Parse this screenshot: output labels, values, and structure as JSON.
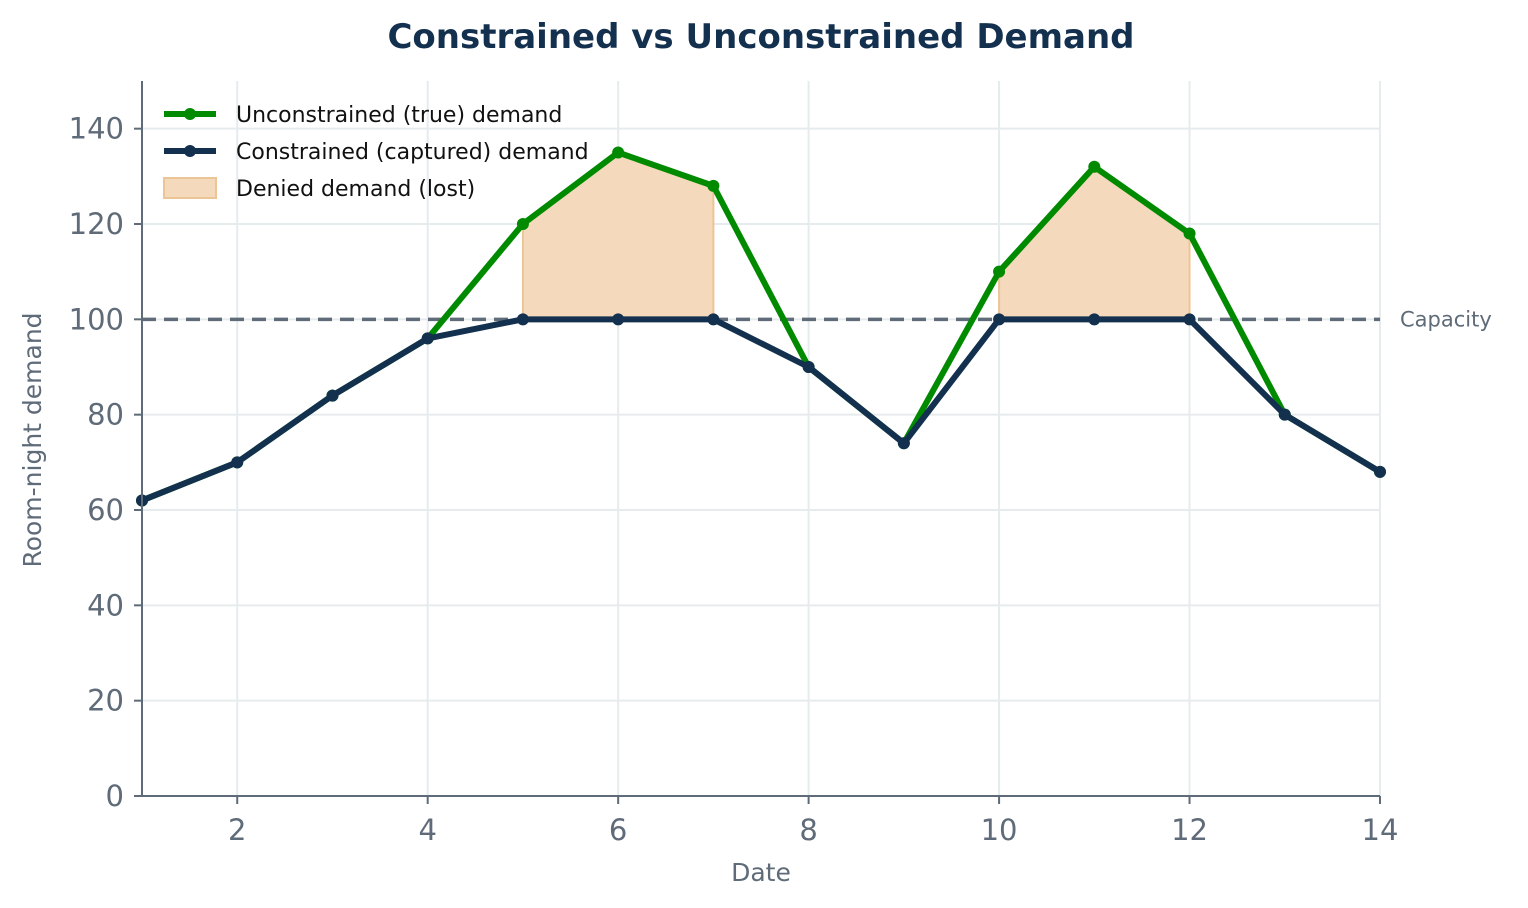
{
  "chart_data": {
    "type": "line",
    "title": "Constrained vs Unconstrained Demand",
    "xlabel": "Date",
    "ylabel": "Room-night demand",
    "xlim": [
      1,
      14
    ],
    "ylim": [
      0,
      150
    ],
    "xticks": [
      2,
      4,
      6,
      8,
      10,
      12,
      14
    ],
    "yticks": [
      0,
      20,
      40,
      60,
      80,
      100,
      120,
      140
    ],
    "grid": true,
    "legend_position": "top-left",
    "x": [
      1,
      2,
      3,
      4,
      5,
      6,
      7,
      8,
      9,
      10,
      11,
      12,
      13,
      14
    ],
    "series": [
      {
        "name": "Unconstrained (true) demand",
        "color": "#008a00",
        "values": [
          62,
          70,
          84,
          96,
          120,
          135,
          128,
          90,
          74,
          110,
          132,
          118,
          80,
          68
        ]
      },
      {
        "name": "Constrained (captured) demand",
        "color": "#13304f",
        "values": [
          62,
          70,
          84,
          96,
          100,
          100,
          100,
          90,
          74,
          100,
          100,
          100,
          80,
          68
        ]
      }
    ],
    "fill": {
      "name": "Denied demand (lost)",
      "color": "#f5d9bc",
      "edge_color": "#ecc597"
    },
    "capacity": {
      "value": 100,
      "label": "Capacity",
      "color": "#5f6b78"
    }
  }
}
